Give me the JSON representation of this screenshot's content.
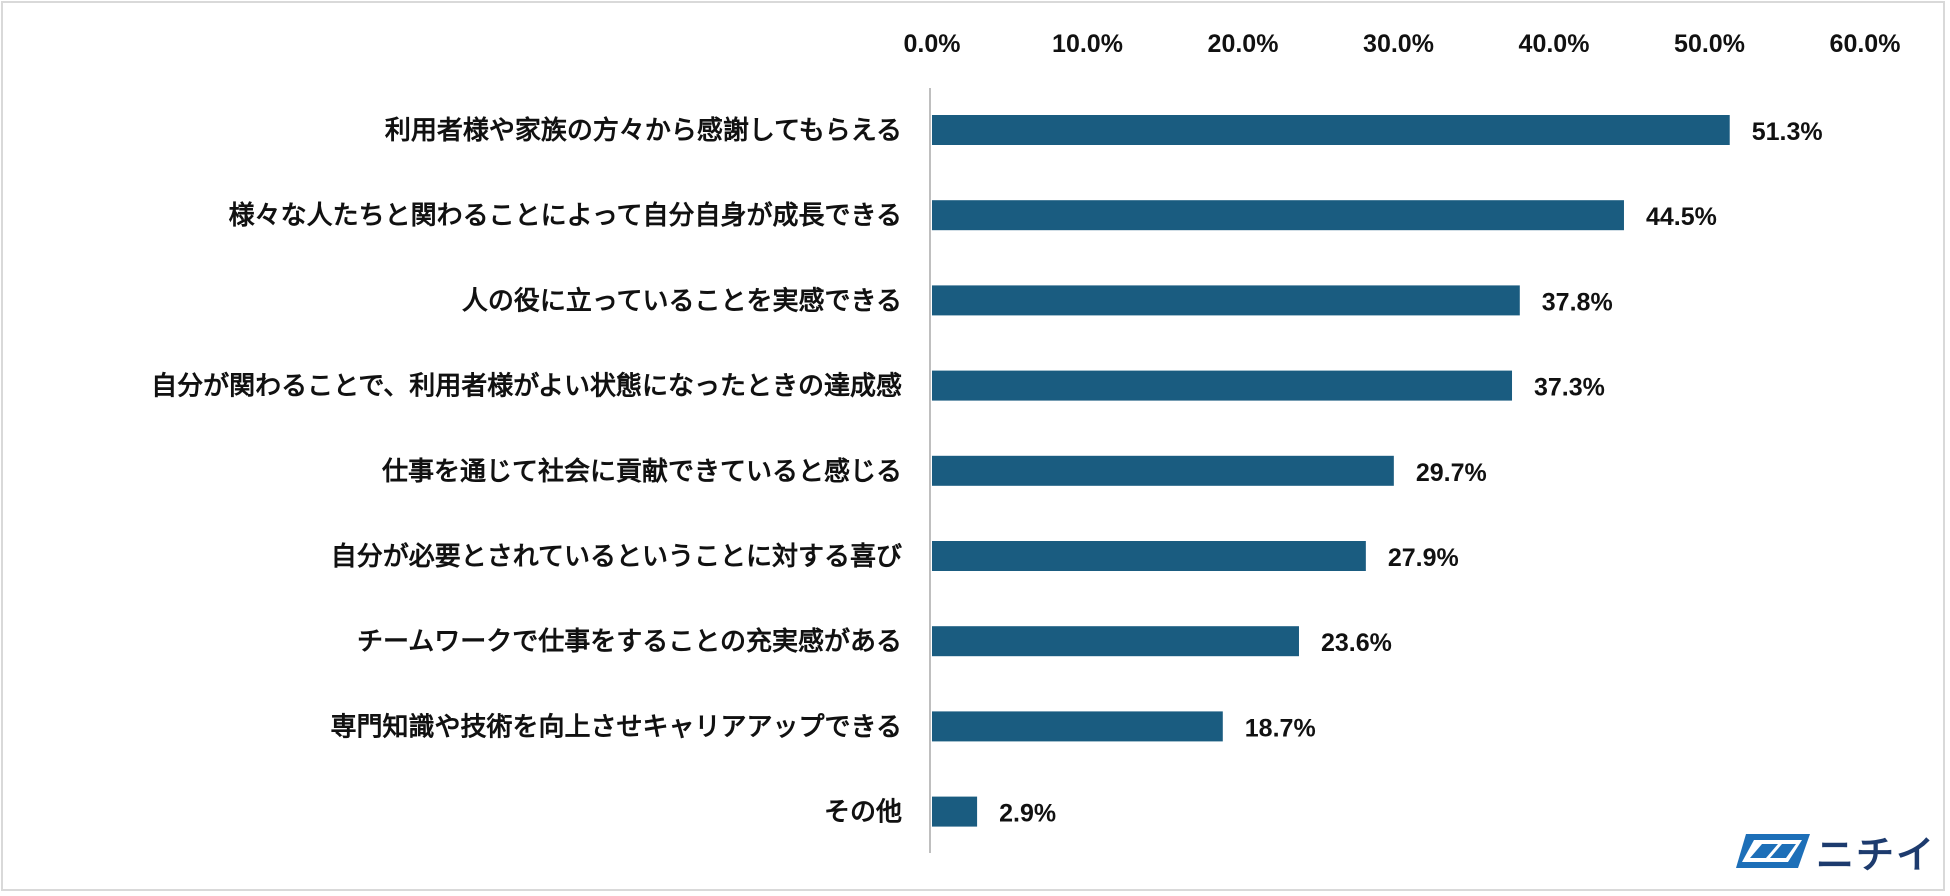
{
  "chart_data": {
    "type": "bar",
    "orientation": "horizontal",
    "x_ticks": [
      "0.0%",
      "10.0%",
      "20.0%",
      "30.0%",
      "40.0%",
      "50.0%",
      "60.0%"
    ],
    "xlim": [
      0,
      60
    ],
    "x_axis_position": "top",
    "categories": [
      "利用者様や家族の方々から感謝してもらえる",
      "様々な人たちと関わることによって自分自身が成長できる",
      "人の役に立っていることを実感できる",
      "自分が関わることで、利用者様がよい状態になったときの達成感",
      "仕事を通じて社会に貢献できていると感じる",
      "自分が必要とされているということに対する喜び",
      "チームワークで仕事をすることの充実感がある",
      "専門知識や技術を向上させキャリアアップできる",
      "その他"
    ],
    "values": [
      51.3,
      44.5,
      37.8,
      37.3,
      29.7,
      27.9,
      23.6,
      18.7,
      2.9
    ],
    "value_labels": [
      "51.3%",
      "44.5%",
      "37.8%",
      "37.3%",
      "29.7%",
      "27.9%",
      "23.6%",
      "18.7%",
      "2.9%"
    ],
    "bar_color": "#1a5c80",
    "axis_line_color": "#bfbfbf",
    "grid": false,
    "legend": "none"
  },
  "logo": {
    "text": "ニチイ",
    "icon": "nichii-logo-mark",
    "color": "#1d3b6e"
  }
}
